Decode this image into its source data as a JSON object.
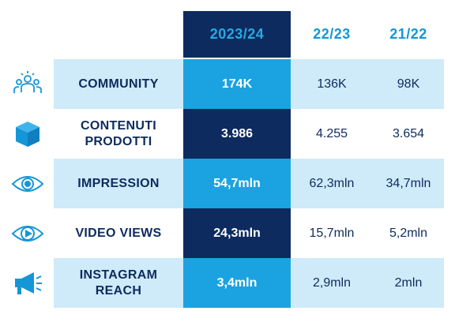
{
  "columns": {
    "current": "2023/24",
    "prev1": "22/23",
    "prev2": "21/22"
  },
  "rows": [
    {
      "label": "COMMUNITY",
      "icon": "community-icon",
      "current": "174K",
      "prev1": "136K",
      "prev2": "98K"
    },
    {
      "label": "CONTENUTI\nPRODOTTI",
      "icon": "cube-icon",
      "current": "3.986",
      "prev1": "4.255",
      "prev2": "3.654"
    },
    {
      "label": "IMPRESSION",
      "icon": "eye-icon",
      "current": "54,7mln",
      "prev1": "62,3mln",
      "prev2": "34,7mln"
    },
    {
      "label": "VIDEO VIEWS",
      "icon": "video-eye-icon",
      "current": "24,3mln",
      "prev1": "15,7mln",
      "prev2": "5,2mln"
    },
    {
      "label": "INSTAGRAM\nREACH",
      "icon": "megaphone-icon",
      "current": "3,4mln",
      "prev1": "2,9mln",
      "prev2": "2mln"
    }
  ],
  "colors": {
    "navy": "#0d2b5e",
    "accent_blue": "#1aa3e0",
    "light_blue": "#cfeaf9",
    "icon_blue": "#1596d6"
  }
}
